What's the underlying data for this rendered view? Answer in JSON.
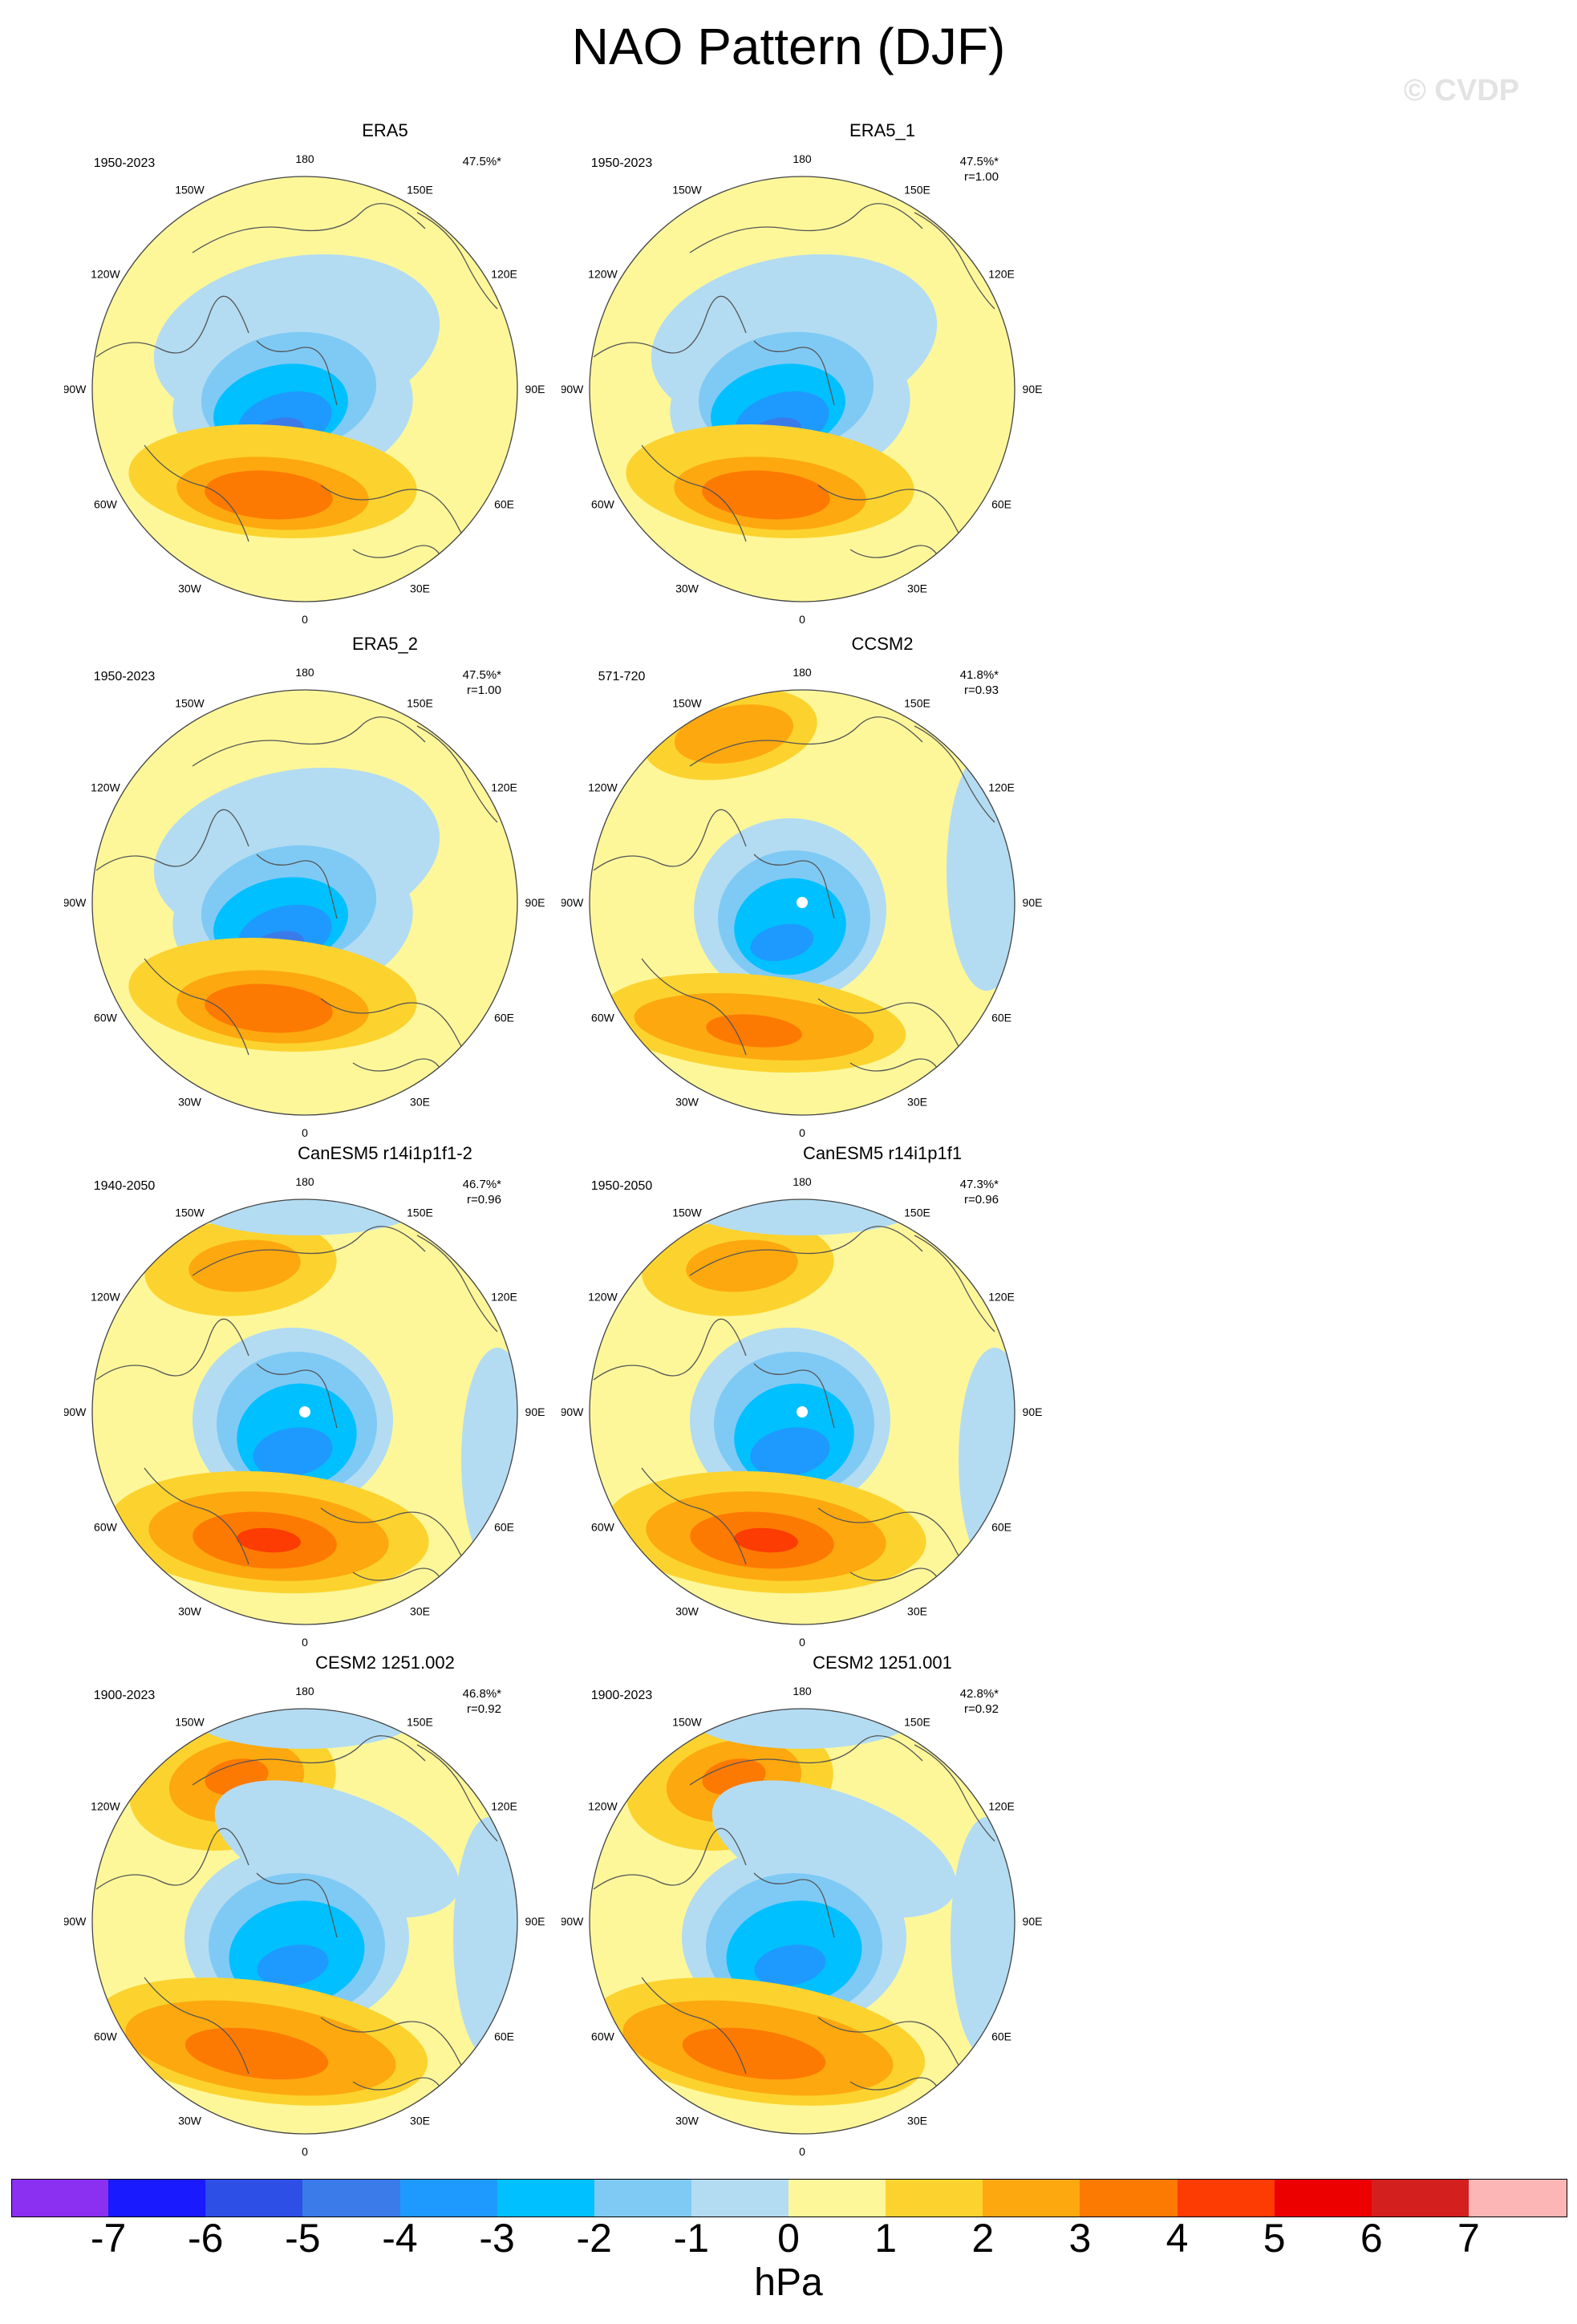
{
  "title": "NAO Pattern (DJF)",
  "watermark": "© CVDP",
  "units": "hPa",
  "colorbar": {
    "colors": [
      "#8b2ff0",
      "#1a1aff",
      "#2d4fe6",
      "#3a7be9",
      "#1e9aff",
      "#00c0ff",
      "#7fcaf5",
      "#b3dcf2",
      "#fdf79a",
      "#fcd32e",
      "#fda80f",
      "#fd7a02",
      "#fc3c02",
      "#ec0000",
      "#d41f1f",
      "#fcb6b6"
    ],
    "labels": [
      "-7",
      "-6",
      "-5",
      "-4",
      "-3",
      "-2",
      "-1",
      "0",
      "1",
      "2",
      "3",
      "4",
      "5",
      "6",
      "7"
    ]
  },
  "lon_labels": [
    "180",
    "150E",
    "120E",
    "90E",
    "60E",
    "30E",
    "0",
    "30W",
    "60W",
    "90W",
    "120W",
    "150W"
  ],
  "panels": [
    {
      "title": "ERA5",
      "years": "1950-2023",
      "pct": "47.5%*",
      "r": "",
      "variant": "obs"
    },
    {
      "title": "ERA5_1",
      "years": "1950-2023",
      "pct": "47.5%*",
      "r": "r=1.00",
      "variant": "obs"
    },
    {
      "title": "ERA5_2",
      "years": "1950-2023",
      "pct": "47.5%*",
      "r": "r=1.00",
      "variant": "obs"
    },
    {
      "title": "CCSM2",
      "years": "571-720",
      "pct": "41.8%*",
      "r": "r=0.93",
      "variant": "model"
    },
    {
      "title": "CanESM5 r14i1p1f1-2",
      "years": "1940-2050",
      "pct": "46.7%*",
      "r": "r=0.96",
      "variant": "can"
    },
    {
      "title": "CanESM5 r14i1p1f1",
      "years": "1950-2050",
      "pct": "47.3%*",
      "r": "r=0.96",
      "variant": "can"
    },
    {
      "title": "CESM2 1251.002",
      "years": "1900-2023",
      "pct": "46.8%*",
      "r": "r=0.92",
      "variant": "cesm"
    },
    {
      "title": "CESM2 1251.001",
      "years": "1900-2023",
      "pct": "42.8%*",
      "r": "r=0.92",
      "variant": "cesm"
    }
  ]
}
